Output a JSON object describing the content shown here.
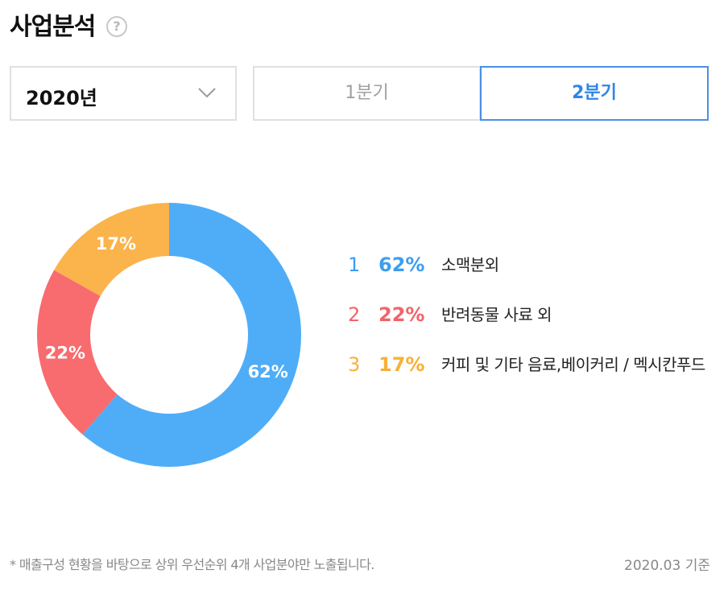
{
  "header": {
    "title": "사업분석",
    "help_symbol": "?"
  },
  "filters": {
    "year": "2020년",
    "tabs": [
      {
        "label": "1분기",
        "selected": false
      },
      {
        "label": "2분기",
        "selected": true
      }
    ]
  },
  "chart_data": {
    "type": "pie",
    "title": "",
    "categories": [
      "소맥분외",
      "반려동물 사료 외",
      "커피 및 기타 음료,베이커리 / 멕시칸푸드"
    ],
    "values": [
      62,
      22,
      17
    ],
    "labels": [
      "62%",
      "22%",
      "17%"
    ],
    "colors": [
      "#4fadf7",
      "#f86b6e",
      "#fbb34c"
    ],
    "donut": true,
    "legend_position": "right"
  },
  "legend": [
    {
      "rank": "1",
      "pct": "62%",
      "name": "소맥분외",
      "color": "#3d9df0"
    },
    {
      "rank": "2",
      "pct": "22%",
      "name": "반려동물 사료 외",
      "color": "#f0646a"
    },
    {
      "rank": "3",
      "pct": "17%",
      "name": "커피 및 기타 음료,베이커리 / 멕시칸푸드",
      "color": "#f8b038"
    }
  ],
  "footer": {
    "note": "* 매출구성 현황을 바탕으로 상위 우선순위 4개 사업분야만 노출됩니다.",
    "basis": "2020.03 기준"
  }
}
